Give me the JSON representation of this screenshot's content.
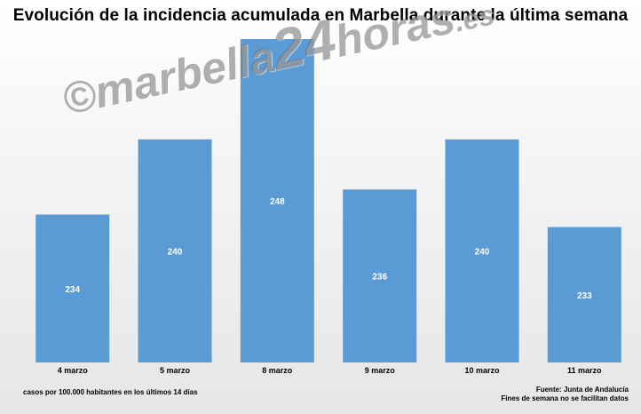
{
  "chart_data": {
    "type": "bar",
    "title": "Evolución de la incidencia acumulada en Marbella durante la última semana",
    "categories": [
      "4 marzo",
      "5 marzo",
      "8 marzo",
      "9 marzo",
      "10 marzo",
      "11 marzo"
    ],
    "values": [
      234,
      240,
      248,
      236,
      240,
      233
    ],
    "ylim": [
      222.2,
      248
    ],
    "xlabel": "",
    "ylabel": "",
    "bar_color": "#5b9bd5",
    "label_color": "#ffffff"
  },
  "watermark": {
    "copyright": "©",
    "prefix": "marbella",
    "number": "24",
    "suffix": "horas",
    "tld": ".es"
  },
  "notes": {
    "left": "casos por 100.000 habitantes en los últimos 14 días",
    "source": "Fuente: Junta de Andalucía",
    "weekend": "Fines de semana no se facilitan datos"
  }
}
